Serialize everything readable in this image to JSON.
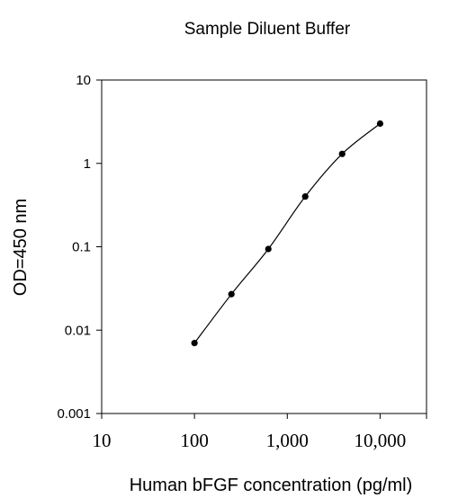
{
  "chart_data": {
    "type": "line",
    "title": "Sample Diluent Buffer",
    "xlabel": "Human bFGF concentration (pg/ml)",
    "ylabel": "OD=450 nm",
    "x_scale": "log",
    "y_scale": "log",
    "xlim": [
      10,
      31623
    ],
    "ylim": [
      0.001,
      10
    ],
    "x_ticks": [
      10,
      100,
      1000,
      10000
    ],
    "x_tick_labels": [
      "10",
      "100",
      "1,000",
      "10,000"
    ],
    "y_ticks": [
      0.001,
      0.01,
      0.1,
      1,
      10
    ],
    "y_tick_labels": [
      "0.001",
      "0.01",
      "0.1",
      "1",
      "10"
    ],
    "grid": false,
    "series": [
      {
        "x": [
          100,
          250,
          625,
          1560,
          3900,
          10000
        ],
        "y": [
          0.007,
          0.027,
          0.094,
          0.4,
          1.3,
          3.0
        ],
        "marker": "circle",
        "color": "#000000"
      }
    ]
  }
}
